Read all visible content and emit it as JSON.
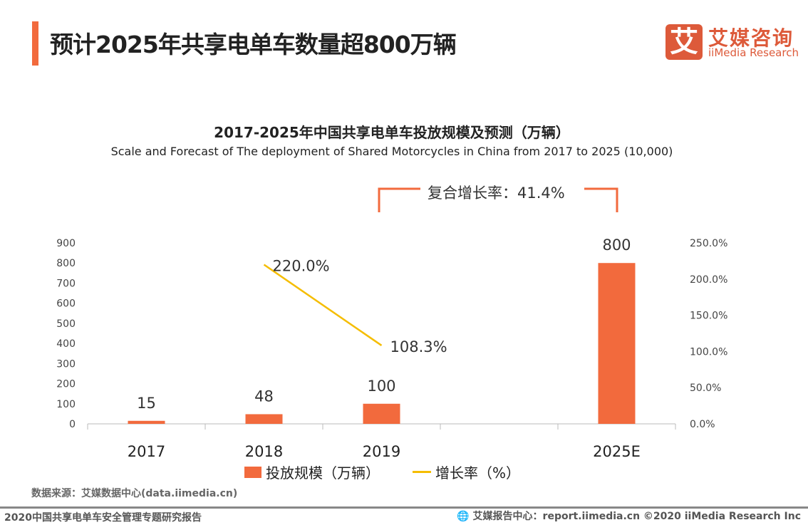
{
  "header": {
    "title": "预计2025年共享电单车数量超800万辆",
    "logo_icon_char": "艾",
    "logo_cn": "艾媒咨询",
    "logo_en": "iiMedia Research",
    "accent": "#f26a3d"
  },
  "chart_data": {
    "type": "bar+line",
    "title": "2017-2025年中国共享电单车投放规模及预测（万辆）",
    "subtitle": "Scale and Forecast of The deployment of Shared Motorcycles in China from 2017 to 2025 (10,000)",
    "annotation": "复合增长率：41.4%",
    "categories": [
      "2017",
      "2018",
      "2019",
      "2025E"
    ],
    "series": [
      {
        "name": "投放规模（万辆）",
        "type": "bar",
        "axis": "left",
        "color": "#f26a3d",
        "values": [
          15,
          48,
          100,
          800
        ],
        "labels": [
          "15",
          "48",
          "100",
          "800"
        ]
      },
      {
        "name": "增长率（%）",
        "type": "line",
        "axis": "right",
        "color": "#f5bd00",
        "values": [
          null,
          220.0,
          108.3,
          null
        ],
        "labels": [
          "",
          "220.0%",
          "108.3%",
          ""
        ]
      }
    ],
    "left_axis": {
      "range": [
        0,
        900
      ],
      "ticks": [
        "0",
        "100",
        "200",
        "300",
        "400",
        "500",
        "600",
        "700",
        "800",
        "900"
      ]
    },
    "right_axis": {
      "range": [
        0,
        250
      ],
      "ticks": [
        "0.0%",
        "50.0%",
        "100.0%",
        "150.0%",
        "200.0%",
        "250.0%"
      ]
    },
    "grid": false,
    "legend_position": "bottom"
  },
  "footer": {
    "source": "数据来源：艾媒数据中心(data.iimedia.cn)",
    "report": "2020中国共享电单车安全管理专题研究报告",
    "right": "🌐 艾媒报告中心：report.iimedia.cn   ©2020  iiMedia Research  Inc"
  }
}
